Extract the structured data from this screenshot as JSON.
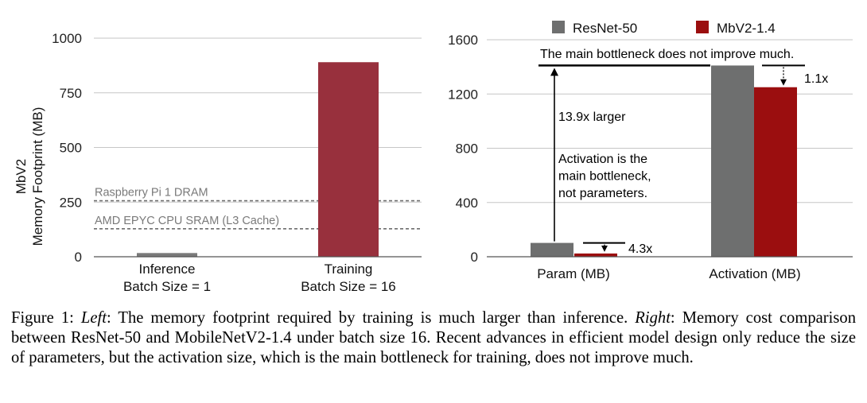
{
  "chart_data": [
    {
      "type": "bar",
      "ylabel": "MbV2\nMemory Footprint (MB)",
      "ylim": [
        0,
        1000
      ],
      "yticks": [
        0,
        250,
        500,
        750,
        1000
      ],
      "grid": true,
      "categories": [
        "Inference\nBatch Size = 1",
        "Training\nBatch Size = 16"
      ],
      "series": [
        {
          "values": [
            17,
            890
          ],
          "color": "#7a7a7a"
        }
      ],
      "bar_colors": [
        "#7a7a7a",
        "#98303d"
      ],
      "reference_lines": [
        {
          "label": "Raspberry Pi 1 DRAM",
          "value": 256
        },
        {
          "label": "AMD EPYC CPU SRAM (L3 Cache)",
          "value": 128
        }
      ]
    },
    {
      "type": "bar",
      "ylim": [
        0,
        1600
      ],
      "yticks": [
        0,
        400,
        800,
        1200,
        1600
      ],
      "grid": true,
      "legend": "top",
      "categories": [
        "Param (MB)",
        "Activation (MB)"
      ],
      "series": [
        {
          "name": "ResNet-50",
          "values": [
            102,
            1410
          ],
          "color": "#6e6f6f"
        },
        {
          "name": "MbV2-1.4",
          "values": [
            24,
            1250
          ],
          "color": "#9b0e0f"
        }
      ],
      "annotations": [
        {
          "text": "The main bottleneck does not improve much."
        },
        {
          "text": "13.9x larger"
        },
        {
          "text": "Activation is the\nmain bottleneck,\nnot parameters."
        },
        {
          "text": "4.3x"
        },
        {
          "text": "1.1x"
        }
      ]
    }
  ],
  "caption": {
    "label": "Figure 1: ",
    "left_tag": "Left",
    "left_text": ": The memory footprint required by training is much larger than inference. ",
    "right_tag": "Right",
    "right_text": ": Memory cost comparison between ResNet-50 and MobileNetV2-1.4 under batch size 16. Recent advances in efficient model design only reduce the size of parameters, but the activation size, which is the main bottleneck for training, does not improve much."
  }
}
